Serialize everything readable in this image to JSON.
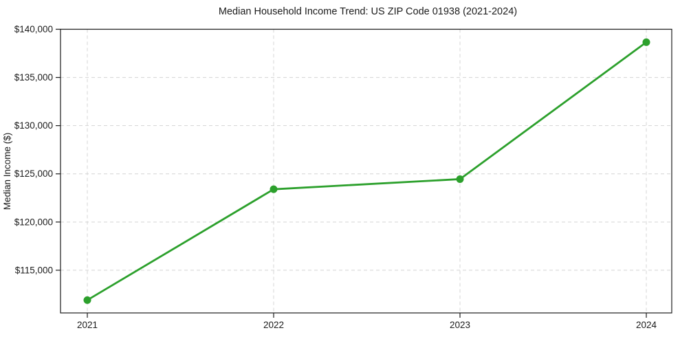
{
  "chart_data": {
    "type": "line",
    "title": "Median Household Income Trend: US ZIP Code 01938 (2021-2024)",
    "xlabel": "",
    "ylabel": "Median Income ($)",
    "categories": [
      "2021",
      "2022",
      "2023",
      "2024"
    ],
    "series": [
      {
        "name": "Median Household Income",
        "values": [
          111900,
          123400,
          124450,
          138650
        ],
        "color": "#2ca02c",
        "marker": "circle"
      }
    ],
    "ylim": [
      110570,
      140000
    ],
    "yticks": [
      115000,
      120000,
      125000,
      130000,
      135000,
      140000
    ],
    "ytick_prefix": "$",
    "grid": true,
    "grid_style": "dashed",
    "legend": "none",
    "colors": {
      "line": "#2ca02c",
      "grid": "#d4d4d4",
      "axis": "#1a1a1a",
      "text": "#1a1a1a",
      "background": "#ffffff"
    }
  }
}
